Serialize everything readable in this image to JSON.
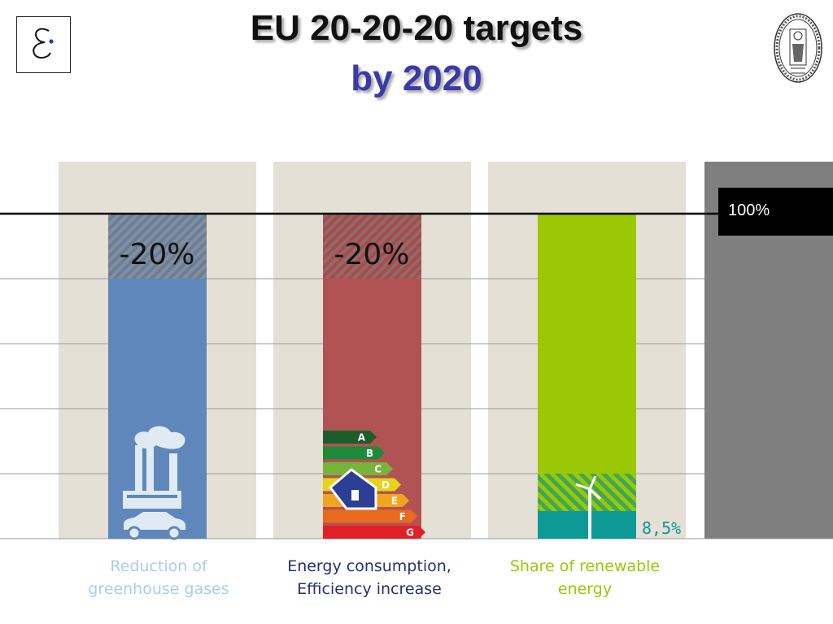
{
  "title": {
    "line1": "EU 20-20-20 targets",
    "line2": "by 2020"
  },
  "colors": {
    "greenhouse": "#5f87bb",
    "energy": "#b25353",
    "renewable": "#9bc804",
    "renewable_current": "#0d9a96",
    "panel": "#e4e0d5",
    "reference": "#7f7f7f"
  },
  "chart_data": {
    "type": "bar",
    "ylim": [
      0,
      100
    ],
    "reference_label": "100%",
    "bars": [
      {
        "category": "Reduction of greenhouse gases",
        "value": 100,
        "target_reduction": 20,
        "target_label": "-20%"
      },
      {
        "category": "Energy consumption, Efficiency increase",
        "value": 100,
        "target_reduction": 20,
        "target_label": "-20%",
        "energy_classes": [
          "A",
          "B",
          "C",
          "D",
          "E",
          "F",
          "G"
        ]
      },
      {
        "category": "Share of renewable energy",
        "value": 100,
        "current_share": 8.5,
        "current_label": "8,5%",
        "target_share": 20
      }
    ]
  },
  "labels": {
    "greenhouse": [
      "Reduction of",
      "greenhouse gases"
    ],
    "energy": [
      "Energy consumption,",
      "Efficiency increase"
    ],
    "renewable": [
      "Share of renewable",
      "energy"
    ]
  }
}
